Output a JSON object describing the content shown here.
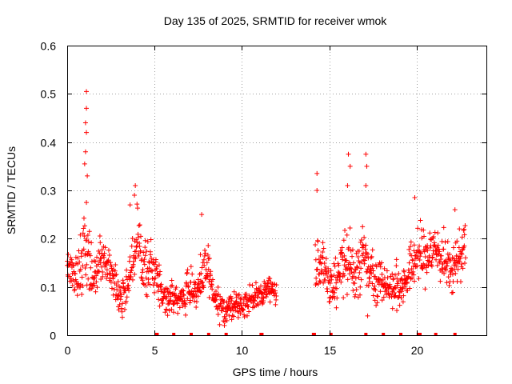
{
  "chart_data": {
    "type": "scatter",
    "title": "Day 135 of 2025, SRMTID for receiver wmok",
    "xlabel": "GPS time / hours",
    "ylabel": "SRMTID / TECUs",
    "xlim": [
      0,
      24
    ],
    "ylim": [
      0,
      0.6
    ],
    "x_ticks": [
      0,
      5,
      10,
      15,
      20
    ],
    "y_ticks": [
      0,
      0.1,
      0.2,
      0.3,
      0.4,
      0.5,
      0.6
    ],
    "x_tick_labels": [
      "0",
      "5",
      "10",
      "15",
      "20"
    ],
    "y_tick_labels": [
      "0",
      "0.1",
      "0.2",
      "0.3",
      "0.4",
      "0.5",
      "0.6"
    ],
    "grid": true,
    "marker": "+",
    "color": "#ff0000",
    "data_gap_hours": [
      12.0,
      14.2
    ],
    "zero_markers_x": [
      5.1,
      5.15,
      6.1,
      7.1,
      8.1,
      9.1,
      11.1,
      11.15,
      14.1,
      14.15,
      15.1,
      17.1,
      18.1,
      19.1,
      20.1,
      20.2,
      21.1,
      22.2
    ],
    "series": [
      {
        "name": "SRMTID",
        "envelope": {
          "hours": [
            0.0,
            0.5,
            1.0,
            1.5,
            2.0,
            2.5,
            3.0,
            3.5,
            4.0,
            4.5,
            5.0,
            5.5,
            6.0,
            6.5,
            7.0,
            7.5,
            8.0,
            8.5,
            9.0,
            9.5,
            10.0,
            10.5,
            11.0,
            11.5,
            12.0,
            14.2,
            14.5,
            15.0,
            15.5,
            16.0,
            16.5,
            17.0,
            17.5,
            18.0,
            18.5,
            19.0,
            19.5,
            20.0,
            20.5,
            21.0,
            21.5,
            22.0,
            22.5,
            22.8
          ],
          "median": [
            0.14,
            0.12,
            0.18,
            0.12,
            0.15,
            0.14,
            0.07,
            0.1,
            0.2,
            0.13,
            0.14,
            0.08,
            0.08,
            0.07,
            0.1,
            0.09,
            0.14,
            0.07,
            0.05,
            0.06,
            0.06,
            0.08,
            0.08,
            0.1,
            0.09,
            0.13,
            0.16,
            0.1,
            0.12,
            0.15,
            0.13,
            0.16,
            0.13,
            0.11,
            0.1,
            0.1,
            0.12,
            0.17,
            0.16,
            0.18,
            0.16,
            0.13,
            0.17,
            0.19
          ],
          "spread": [
            0.03,
            0.03,
            0.06,
            0.04,
            0.04,
            0.03,
            0.03,
            0.03,
            0.05,
            0.04,
            0.03,
            0.02,
            0.02,
            0.02,
            0.03,
            0.03,
            0.04,
            0.02,
            0.02,
            0.02,
            0.02,
            0.02,
            0.02,
            0.02,
            0.02,
            0.04,
            0.04,
            0.03,
            0.04,
            0.05,
            0.04,
            0.05,
            0.04,
            0.03,
            0.03,
            0.03,
            0.03,
            0.05,
            0.04,
            0.04,
            0.04,
            0.03,
            0.04,
            0.04
          ]
        },
        "peaks": [
          {
            "x": 1.1,
            "y": 0.505
          },
          {
            "x": 1.1,
            "y": 0.47
          },
          {
            "x": 1.05,
            "y": 0.44
          },
          {
            "x": 1.1,
            "y": 0.42
          },
          {
            "x": 1.05,
            "y": 0.38
          },
          {
            "x": 1.0,
            "y": 0.355
          },
          {
            "x": 1.15,
            "y": 0.33
          },
          {
            "x": 1.1,
            "y": 0.275
          },
          {
            "x": 3.9,
            "y": 0.31
          },
          {
            "x": 3.85,
            "y": 0.29
          },
          {
            "x": 3.6,
            "y": 0.27
          },
          {
            "x": 7.7,
            "y": 0.25
          },
          {
            "x": 14.3,
            "y": 0.335
          },
          {
            "x": 14.3,
            "y": 0.3
          },
          {
            "x": 16.1,
            "y": 0.375
          },
          {
            "x": 16.2,
            "y": 0.35
          },
          {
            "x": 16.05,
            "y": 0.31
          },
          {
            "x": 17.1,
            "y": 0.375
          },
          {
            "x": 17.15,
            "y": 0.35
          },
          {
            "x": 17.1,
            "y": 0.31
          },
          {
            "x": 19.9,
            "y": 0.285
          },
          {
            "x": 22.2,
            "y": 0.26
          },
          {
            "x": 17.2,
            "y": 0.04
          },
          {
            "x": 9.0,
            "y": 0.02
          }
        ]
      }
    ]
  }
}
